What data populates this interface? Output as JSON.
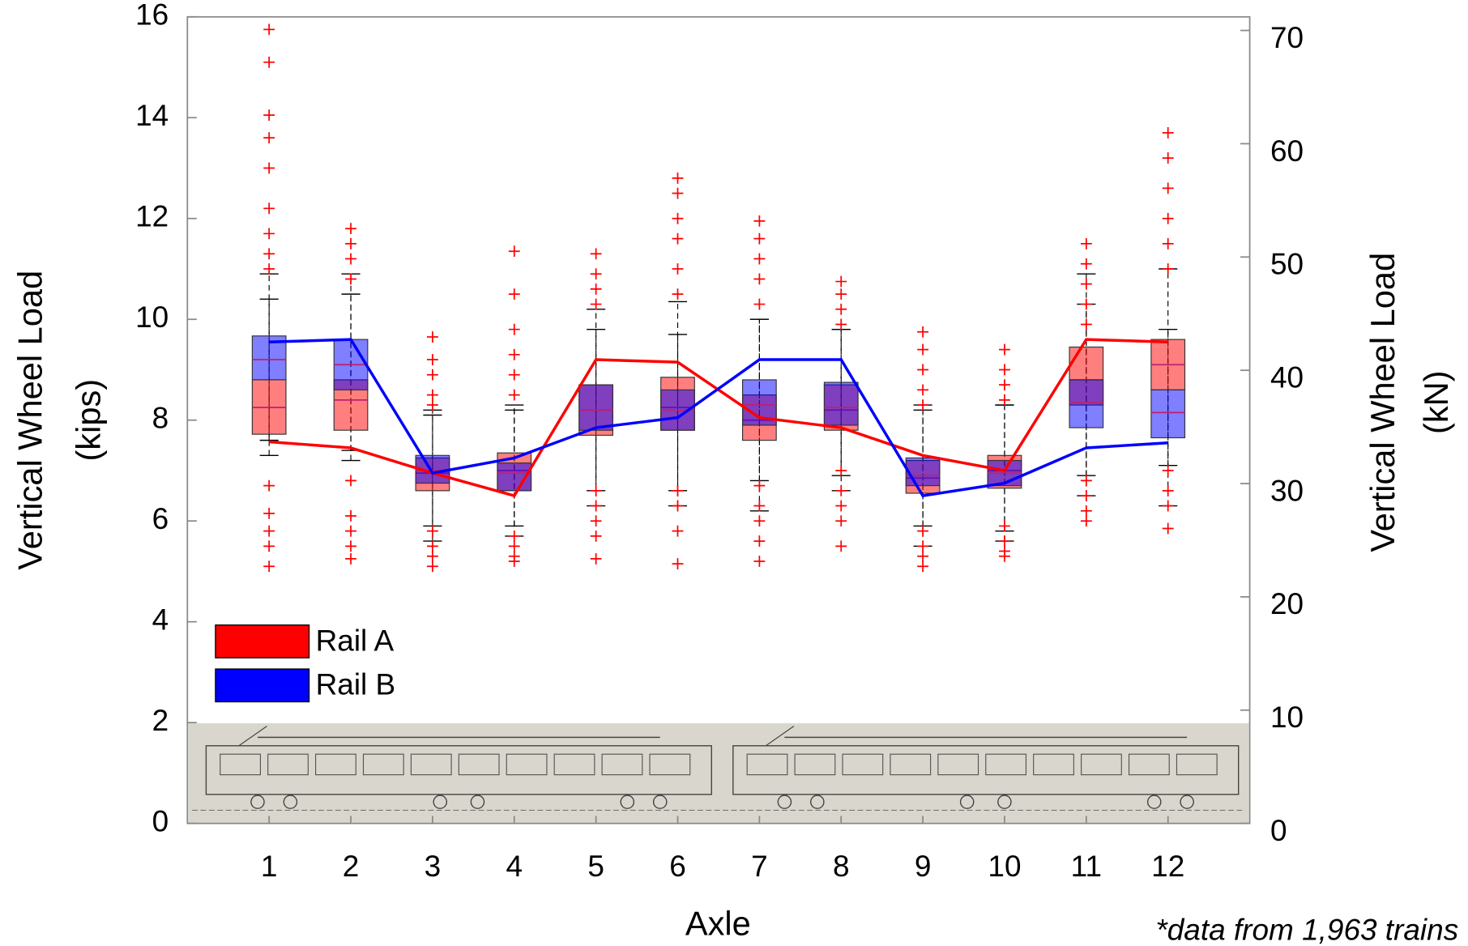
{
  "chart_data": {
    "type": "box",
    "xlabel": "Axle",
    "ylabel": [
      "Vertical Wheel Load",
      "(kips)"
    ],
    "y2label": [
      "Vertical Wheel Load",
      "(kN)"
    ],
    "note": "*data from 1,963 trains",
    "categories": [
      "1",
      "2",
      "3",
      "4",
      "5",
      "6",
      "7",
      "8",
      "9",
      "10",
      "11",
      "12"
    ],
    "ylim": [
      0,
      16
    ],
    "yticks": [
      0,
      2,
      4,
      6,
      8,
      10,
      12,
      14,
      16
    ],
    "y2lim": [
      0,
      71.2
    ],
    "y2ticks": [
      0,
      10,
      20,
      30,
      40,
      50,
      60,
      70
    ],
    "legend": "lower left",
    "series": [
      {
        "name": "Rail A",
        "color": "#ff0000",
        "q1": [
          7.72,
          7.8,
          6.6,
          6.6,
          7.7,
          7.8,
          7.6,
          7.8,
          6.55,
          6.65,
          8.3,
          8.6
        ],
        "median": [
          8.25,
          8.4,
          6.95,
          7.0,
          8.2,
          8.25,
          8.0,
          8.2,
          6.85,
          7.0,
          8.8,
          9.1
        ],
        "q3": [
          8.8,
          8.8,
          7.25,
          7.35,
          8.7,
          8.85,
          8.5,
          8.7,
          7.2,
          7.3,
          9.45,
          9.6
        ],
        "whisker_low": [
          7.3,
          7.2,
          5.6,
          5.7,
          6.3,
          6.3,
          6.2,
          6.6,
          5.5,
          5.6,
          6.9,
          7.1
        ],
        "whisker_high": [
          10.4,
          10.5,
          8.1,
          8.2,
          10.2,
          10.35,
          10.0,
          9.8,
          8.3,
          8.3,
          10.9,
          11.0
        ],
        "mean": [
          7.57,
          7.45,
          6.95,
          6.5,
          9.2,
          9.15,
          8.05,
          7.85,
          7.3,
          7.0,
          9.6,
          9.55
        ],
        "outliers": [
          [
            15.75,
            15.1,
            14.05,
            13.6,
            13.0,
            12.2,
            11.7,
            11.3,
            11.0,
            6.7,
            6.15,
            5.8,
            5.5,
            5.1
          ],
          [
            11.8,
            11.5,
            11.2,
            10.8,
            6.8,
            6.1,
            5.8,
            5.5,
            5.25
          ],
          [
            9.65,
            9.2,
            8.9,
            8.5,
            8.3,
            5.8,
            5.5,
            5.3,
            5.1
          ],
          [
            11.35,
            10.5,
            9.8,
            9.3,
            8.9,
            8.5,
            5.7,
            5.5,
            5.3,
            5.2
          ],
          [
            11.3,
            10.9,
            10.6,
            10.3,
            6.6,
            6.3,
            6.0,
            5.7,
            5.25
          ],
          [
            12.8,
            12.5,
            12.0,
            11.6,
            11.0,
            10.5,
            6.6,
            6.3,
            5.8,
            5.15
          ],
          [
            11.95,
            11.6,
            11.2,
            10.8,
            10.3,
            6.7,
            6.3,
            6.0,
            5.6,
            5.2
          ],
          [
            10.75,
            10.5,
            10.2,
            9.9,
            7.0,
            6.6,
            6.3,
            6.0,
            5.5
          ],
          [
            9.75,
            9.4,
            9.0,
            8.6,
            8.3,
            5.8,
            5.5,
            5.3,
            5.1
          ],
          [
            9.4,
            9.0,
            8.7,
            8.4,
            5.9,
            5.6,
            5.4,
            5.3
          ],
          [
            11.5,
            11.1,
            10.7,
            10.3,
            9.9,
            6.8,
            6.5,
            6.2,
            6.0
          ],
          [
            13.7,
            13.2,
            12.6,
            12.0,
            11.5,
            11.0,
            7.0,
            6.6,
            6.3,
            5.85
          ]
        ]
      },
      {
        "name": "Rail B",
        "color": "#0000ff",
        "q1": [
          8.8,
          8.6,
          6.75,
          6.6,
          7.8,
          7.8,
          7.9,
          7.9,
          6.7,
          6.7,
          7.85,
          7.65
        ],
        "median": [
          9.2,
          9.1,
          7.0,
          6.95,
          8.2,
          8.2,
          8.3,
          8.25,
          6.9,
          6.95,
          8.35,
          8.15
        ],
        "q3": [
          9.67,
          9.6,
          7.3,
          7.15,
          8.7,
          8.6,
          8.8,
          8.75,
          7.25,
          7.2,
          8.8,
          8.6
        ],
        "whisker_low": [
          7.6,
          7.4,
          5.9,
          5.9,
          6.6,
          6.6,
          6.8,
          6.9,
          5.9,
          5.8,
          6.5,
          6.3
        ],
        "whisker_high": [
          10.9,
          10.9,
          8.2,
          8.3,
          9.8,
          9.7,
          10.0,
          9.8,
          8.2,
          8.3,
          10.3,
          9.8
        ],
        "mean": [
          9.55,
          9.6,
          6.95,
          7.25,
          7.85,
          8.05,
          9.2,
          9.2,
          6.5,
          6.75,
          7.45,
          7.55
        ]
      }
    ]
  }
}
